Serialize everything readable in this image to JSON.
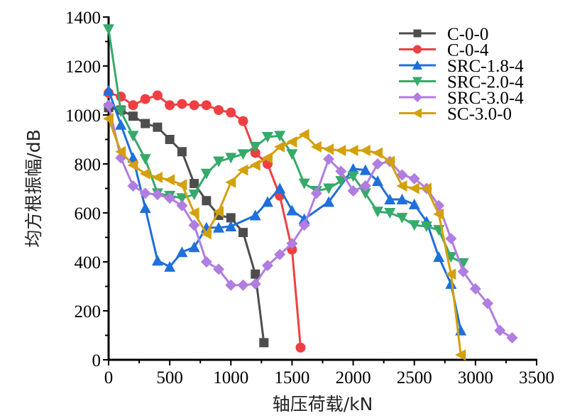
{
  "chart_data": {
    "type": "line",
    "title": "",
    "xlabel": "轴压荷载/kN",
    "ylabel": "均方根振幅/dB",
    "xlim": [
      0,
      3500
    ],
    "ylim": [
      0,
      1400
    ],
    "xticks": [
      0,
      500,
      1000,
      1500,
      2000,
      2500,
      3000,
      3500
    ],
    "yticks": [
      0,
      200,
      400,
      600,
      800,
      1000,
      1200,
      1400
    ],
    "xtick_labels": [
      "0",
      "500",
      "1000",
      "1500",
      "2000",
      "2500",
      "3000",
      "3500"
    ],
    "ytick_labels": [
      "0",
      "200",
      "400",
      "600",
      "800",
      "1000",
      "1200",
      "1400"
    ],
    "grid": false,
    "legend_position": "top-right",
    "series": [
      {
        "name": "C-0-0",
        "color": "#4d4d4d",
        "marker": "square",
        "x": [
          0,
          100,
          200,
          300,
          400,
          500,
          600,
          700,
          800,
          900,
          1000,
          1100,
          1200,
          1270
        ],
        "y": [
          1030,
          1020,
          995,
          965,
          950,
          900,
          850,
          720,
          650,
          590,
          580,
          520,
          350,
          70
        ]
      },
      {
        "name": "C-0-4",
        "color": "#ee4043",
        "marker": "circle",
        "x": [
          0,
          100,
          200,
          300,
          400,
          500,
          600,
          700,
          800,
          900,
          1000,
          1100,
          1200,
          1300,
          1400,
          1500,
          1570
        ],
        "y": [
          1090,
          1075,
          1040,
          1065,
          1080,
          1040,
          1045,
          1040,
          1040,
          1020,
          1010,
          975,
          845,
          800,
          670,
          450,
          50
        ]
      },
      {
        "name": "SRC-1.8-4",
        "color": "#1f6fdc",
        "marker": "triangle-up",
        "x": [
          0,
          100,
          200,
          300,
          400,
          500,
          600,
          700,
          800,
          900,
          1000,
          1200,
          1300,
          1400,
          1500,
          1600,
          1800,
          2000,
          2100,
          2200,
          2300,
          2400,
          2500,
          2600,
          2700,
          2800,
          2880
        ],
        "y": [
          1100,
          960,
          825,
          620,
          405,
          380,
          440,
          460,
          540,
          540,
          545,
          590,
          645,
          700,
          610,
          575,
          645,
          780,
          775,
          730,
          655,
          655,
          635,
          565,
          420,
          310,
          120
        ]
      },
      {
        "name": "SRC-2.0-4",
        "color": "#36aa6a",
        "marker": "triangle-down",
        "x": [
          0,
          100,
          200,
          300,
          400,
          500,
          600,
          700,
          800,
          900,
          1000,
          1100,
          1200,
          1300,
          1400,
          1500,
          1600,
          1700,
          1800,
          1900,
          2000,
          2100,
          2200,
          2300,
          2400,
          2500,
          2600,
          2700,
          2800,
          2900
        ],
        "y": [
          1350,
          1015,
          915,
          820,
          680,
          670,
          660,
          675,
          760,
          810,
          825,
          840,
          870,
          910,
          915,
          840,
          720,
          690,
          700,
          730,
          750,
          680,
          605,
          600,
          580,
          550,
          545,
          530,
          420,
          395
        ]
      },
      {
        "name": "SRC-3.0-4",
        "color": "#b07de0",
        "marker": "diamond",
        "x": [
          0,
          100,
          200,
          300,
          400,
          500,
          600,
          700,
          800,
          900,
          1000,
          1100,
          1200,
          1300,
          1400,
          1500,
          1600,
          1700,
          1800,
          1900,
          2000,
          2100,
          2200,
          2300,
          2400,
          2500,
          2600,
          2700,
          2800,
          2900,
          3000,
          3100,
          3200,
          3300
        ],
        "y": [
          1040,
          825,
          710,
          680,
          675,
          660,
          630,
          550,
          400,
          370,
          305,
          305,
          310,
          385,
          430,
          475,
          550,
          680,
          820,
          770,
          690,
          710,
          800,
          810,
          755,
          740,
          700,
          630,
          495,
          360,
          290,
          230,
          120,
          90
        ]
      },
      {
        "name": "SC-3.0-0",
        "color": "#d4a00c",
        "marker": "triangle-left",
        "x": [
          0,
          100,
          200,
          300,
          400,
          500,
          600,
          700,
          800,
          900,
          1000,
          1100,
          1200,
          1300,
          1400,
          1500,
          1600,
          1700,
          1800,
          1900,
          2000,
          2100,
          2200,
          2300,
          2400,
          2500,
          2600,
          2700,
          2800,
          2880
        ],
        "y": [
          985,
          850,
          795,
          760,
          745,
          735,
          715,
          600,
          515,
          605,
          725,
          775,
          795,
          825,
          870,
          890,
          920,
          870,
          860,
          855,
          855,
          855,
          845,
          810,
          710,
          700,
          700,
          595,
          350,
          20
        ]
      }
    ]
  }
}
